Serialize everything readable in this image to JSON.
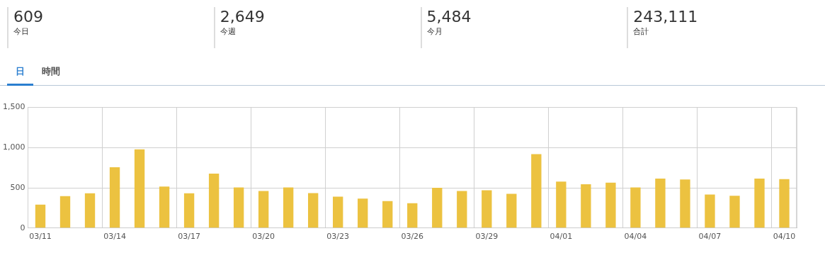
{
  "chart_data": [
    {
      "type": "other",
      "categories": [
        "今日",
        "今週",
        "今月",
        "合計"
      ],
      "value_labels": [
        "609",
        "2,649",
        "5,484",
        "243,111"
      ],
      "values": [
        609,
        2649,
        5484,
        243111
      ]
    },
    {
      "type": "bar",
      "annotations": [
        "日",
        "時間"
      ],
      "categories": [
        "03/11",
        null,
        null,
        "03/14",
        null,
        null,
        "03/17",
        null,
        null,
        "03/20",
        null,
        null,
        "03/23",
        null,
        null,
        "03/26",
        null,
        null,
        "03/29",
        null,
        null,
        "04/01",
        null,
        null,
        "04/04",
        null,
        null,
        "04/07",
        null,
        null,
        "04/10"
      ],
      "values": [
        292,
        396,
        432,
        756,
        979,
        515,
        432,
        676,
        506,
        461,
        506,
        435,
        390,
        366,
        336,
        310,
        500,
        461,
        470,
        426,
        920,
        577,
        545,
        565,
        506,
        616,
        604,
        417,
        402,
        616,
        609
      ],
      "color": "#ecc240",
      "ylim": [
        0,
        1500
      ],
      "yticks": [
        0,
        500,
        {
          "value": 1000,
          "label": "1,000"
        },
        {
          "value": 1500,
          "label": "1,500"
        }
      ],
      "grid": true,
      "legend": false
    }
  ]
}
